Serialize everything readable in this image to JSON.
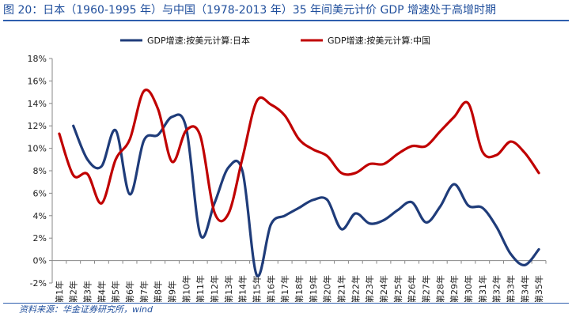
{
  "title": "图 20：日本（1960-1995 年）与中国（1978-2013 年）35 年间美元计价 GDP 增速处于高增时期",
  "source": "资料来源：华金证券研究所，wind",
  "colors": {
    "japan": "#1f3c7a",
    "china": "#c00000",
    "title": "#1f4e9c"
  },
  "chart_data": {
    "type": "line",
    "categories": [
      "第1年",
      "第2年",
      "第3年",
      "第4年",
      "第5年",
      "第6年",
      "第7年",
      "第8年",
      "第9年",
      "第10年",
      "第11年",
      "第12年",
      "第13年",
      "第14年",
      "第15年",
      "第16年",
      "第17年",
      "第18年",
      "第19年",
      "第20年",
      "第21年",
      "第22年",
      "第23年",
      "第24年",
      "第25年",
      "第26年",
      "第27年",
      "第28年",
      "第29年",
      "第30年",
      "第31年",
      "第32年",
      "第33年",
      "第34年",
      "第35年"
    ],
    "ylim": [
      -2,
      18
    ],
    "yticks": [
      "-2%",
      "0%",
      "2%",
      "4%",
      "6%",
      "8%",
      "10%",
      "12%",
      "14%",
      "16%",
      "18%"
    ],
    "ytick_values": [
      -2,
      0,
      2,
      4,
      6,
      8,
      10,
      12,
      14,
      16,
      18
    ],
    "legend_position": "top",
    "grid": false,
    "series": [
      {
        "name": "GDP增速:按美元计算:日本",
        "color": "#1f3c7a",
        "values": [
          null,
          12.0,
          9.0,
          8.4,
          11.6,
          5.9,
          10.7,
          11.2,
          12.8,
          11.8,
          2.3,
          5.1,
          8.3,
          7.9,
          -1.3,
          3.2,
          4.0,
          4.7,
          5.4,
          5.4,
          2.8,
          4.2,
          3.3,
          3.6,
          4.5,
          5.2,
          3.4,
          4.8,
          6.8,
          4.9,
          4.7,
          3.0,
          0.6,
          -0.4,
          1.0
        ]
      },
      {
        "name": "GDP增速:按美元计算:中国",
        "color": "#c00000",
        "values": [
          11.3,
          7.6,
          7.7,
          5.1,
          9.0,
          10.8,
          15.1,
          13.5,
          8.8,
          11.6,
          11.1,
          4.3,
          4.2,
          9.2,
          14.2,
          13.9,
          12.9,
          10.8,
          9.9,
          9.3,
          7.8,
          7.8,
          8.6,
          8.6,
          9.5,
          10.2,
          10.2,
          11.5,
          12.8,
          14.0,
          9.7,
          9.4,
          10.6,
          9.6,
          7.8
        ]
      }
    ]
  }
}
